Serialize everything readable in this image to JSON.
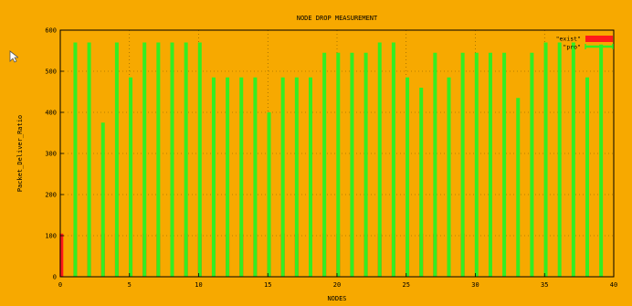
{
  "chart_data": {
    "type": "bar",
    "title": "NODE DROP MEASUREMENT",
    "xlabel": "NODES",
    "ylabel": "Packet_Deliver_Ratio",
    "xlim": [
      0,
      40
    ],
    "ylim": [
      0,
      600
    ],
    "xticks": [
      "0",
      "5",
      "10",
      "15",
      "20",
      "25",
      "30",
      "35",
      "40"
    ],
    "yticks": [
      "0",
      "100",
      "200",
      "300",
      "400",
      "500",
      "600"
    ],
    "grid": true,
    "legend_position": "top-right",
    "series": [
      {
        "name": "\"exist\"",
        "color": "#ff1a1a",
        "x": [
          0,
          1,
          2,
          3,
          4,
          5,
          6,
          7,
          8,
          9,
          10,
          11,
          12,
          13,
          14,
          15,
          16,
          17,
          18,
          19,
          20,
          21,
          22,
          23,
          24,
          25,
          26,
          27,
          28,
          29
        ],
        "values": [
          105,
          105,
          105,
          105,
          105,
          105,
          105,
          105,
          105,
          105,
          105,
          105,
          105,
          105,
          105,
          105,
          105,
          105,
          105,
          105,
          105,
          105,
          105,
          105,
          105,
          105,
          105,
          105,
          105,
          105
        ]
      },
      {
        "name": "\"pro\"",
        "color": "#33ee22",
        "x": [
          1,
          2,
          3,
          4,
          5,
          6,
          7,
          8,
          9,
          10,
          11,
          12,
          13,
          14,
          15,
          16,
          17,
          18,
          19,
          20,
          21,
          22,
          23,
          24,
          25,
          26,
          27,
          28,
          29,
          30,
          31,
          32,
          33,
          34,
          35,
          36,
          37,
          38,
          39
        ],
        "values": [
          570,
          570,
          375,
          570,
          485,
          570,
          570,
          570,
          570,
          570,
          485,
          485,
          485,
          485,
          400,
          485,
          485,
          485,
          545,
          545,
          545,
          545,
          570,
          570,
          485,
          460,
          545,
          485,
          545,
          545,
          545,
          545,
          435,
          545,
          570,
          570,
          570,
          485,
          565
        ]
      }
    ]
  }
}
